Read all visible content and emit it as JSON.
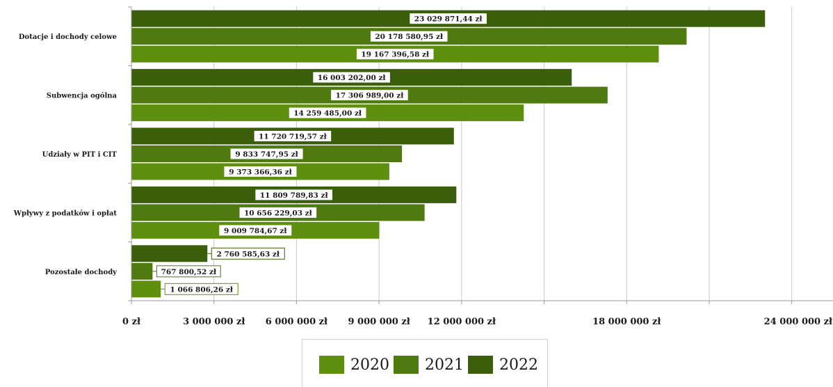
{
  "chart_data": {
    "type": "bar",
    "orientation": "horizontal",
    "categories": [
      "Dotacje i dochody celowe",
      "Subwencja ogólna",
      "Udziały w PIT i CIT",
      "Wpływy z podatków i opłat",
      "Pozostałe dochody"
    ],
    "series": [
      {
        "name": "2020",
        "color": "#5f8f0e",
        "values": [
          19167396.58,
          14259485.0,
          9373366.36,
          9009784.67,
          1066806.26
        ],
        "labels": [
          "19 167 396,58 zł",
          "14 259 485,00 zł",
          "9 373 366,36 zł",
          "9 009 784,67 zł",
          "1 066 806,26 zł"
        ]
      },
      {
        "name": "2021",
        "color": "#4e7a10",
        "values": [
          20178580.95,
          17306989.0,
          9833747.95,
          10656229.03,
          767800.52
        ],
        "labels": [
          "20 178 580,95 zł",
          "17 306 989,00 zł",
          "9 833 747,95 zł",
          "10 656 229,03 zł",
          "767 800,52 zł"
        ]
      },
      {
        "name": "2022",
        "color": "#3b5e0a",
        "values": [
          23029871.44,
          16003202.0,
          11720719.57,
          11809789.83,
          2760585.63
        ],
        "labels": [
          "23 029 871,44 zł",
          "16 003 202,00 zł",
          "11 720 719,57 zł",
          "11 809 789,83 zł",
          "2 760 585,63 zł"
        ]
      }
    ],
    "xlim": [
      0,
      25500000
    ],
    "grid_step": 3000000,
    "ticks": [
      {
        "value": 0,
        "label": "0 zł"
      },
      {
        "value": 3000000,
        "label": "3 000 000 zł"
      },
      {
        "value": 6000000,
        "label": "6 000 000 zł"
      },
      {
        "value": 9000000,
        "label": "9 000 000 zł"
      },
      {
        "value": 12000000,
        "label": "12 000 000 zł"
      },
      {
        "value": 18000000,
        "label": "18 000 000 zł"
      },
      {
        "value": 24000000,
        "label": "24 000 000 zł"
      }
    ],
    "grid": true,
    "legend_position": "bottom",
    "title": "",
    "xlabel": "",
    "ylabel": ""
  },
  "legend": {
    "items": [
      {
        "label": "2020",
        "color": "#5f8f0e"
      },
      {
        "label": "2021",
        "color": "#4e7a10"
      },
      {
        "label": "2022",
        "color": "#3b5e0a"
      }
    ]
  }
}
